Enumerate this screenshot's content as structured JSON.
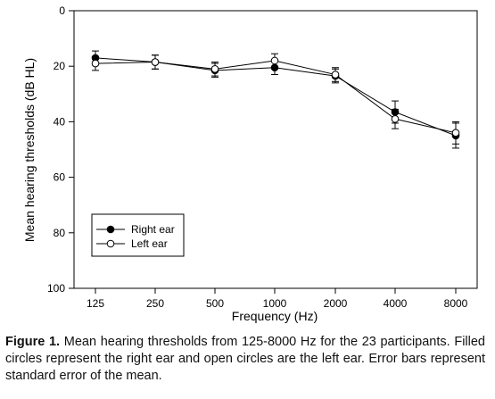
{
  "chart_data": {
    "type": "line",
    "xlabel": "Frequency (Hz)",
    "ylabel": "Mean hearing thresholds (dB HL)",
    "categories": [
      "125",
      "250",
      "500",
      "1000",
      "2000",
      "4000",
      "8000"
    ],
    "ylim": [
      0,
      100
    ],
    "y_inverted": true,
    "yticks": [
      0,
      20,
      40,
      60,
      80,
      100
    ],
    "grid": false,
    "legend_position": "bottom-left",
    "series": [
      {
        "name": "Right ear",
        "marker": "filled-circle",
        "values": [
          17,
          18.5,
          21.5,
          20.5,
          23.5,
          36.5,
          45
        ],
        "error": [
          2.5,
          2.5,
          2.5,
          2.5,
          2.5,
          4,
          4.5
        ]
      },
      {
        "name": "Left ear",
        "marker": "open-circle",
        "values": [
          19,
          18.5,
          21,
          18,
          23,
          39,
          44
        ],
        "error": [
          2.5,
          2.5,
          2.5,
          2.5,
          2.5,
          3.5,
          4
        ]
      }
    ]
  },
  "caption": {
    "label": "Figure 1.",
    "text": "Mean hearing thresholds from 125-8000 Hz for the 23 participants. Filled circles represent the right ear and open circles are the left ear. Error bars represent standard error of the mean."
  }
}
